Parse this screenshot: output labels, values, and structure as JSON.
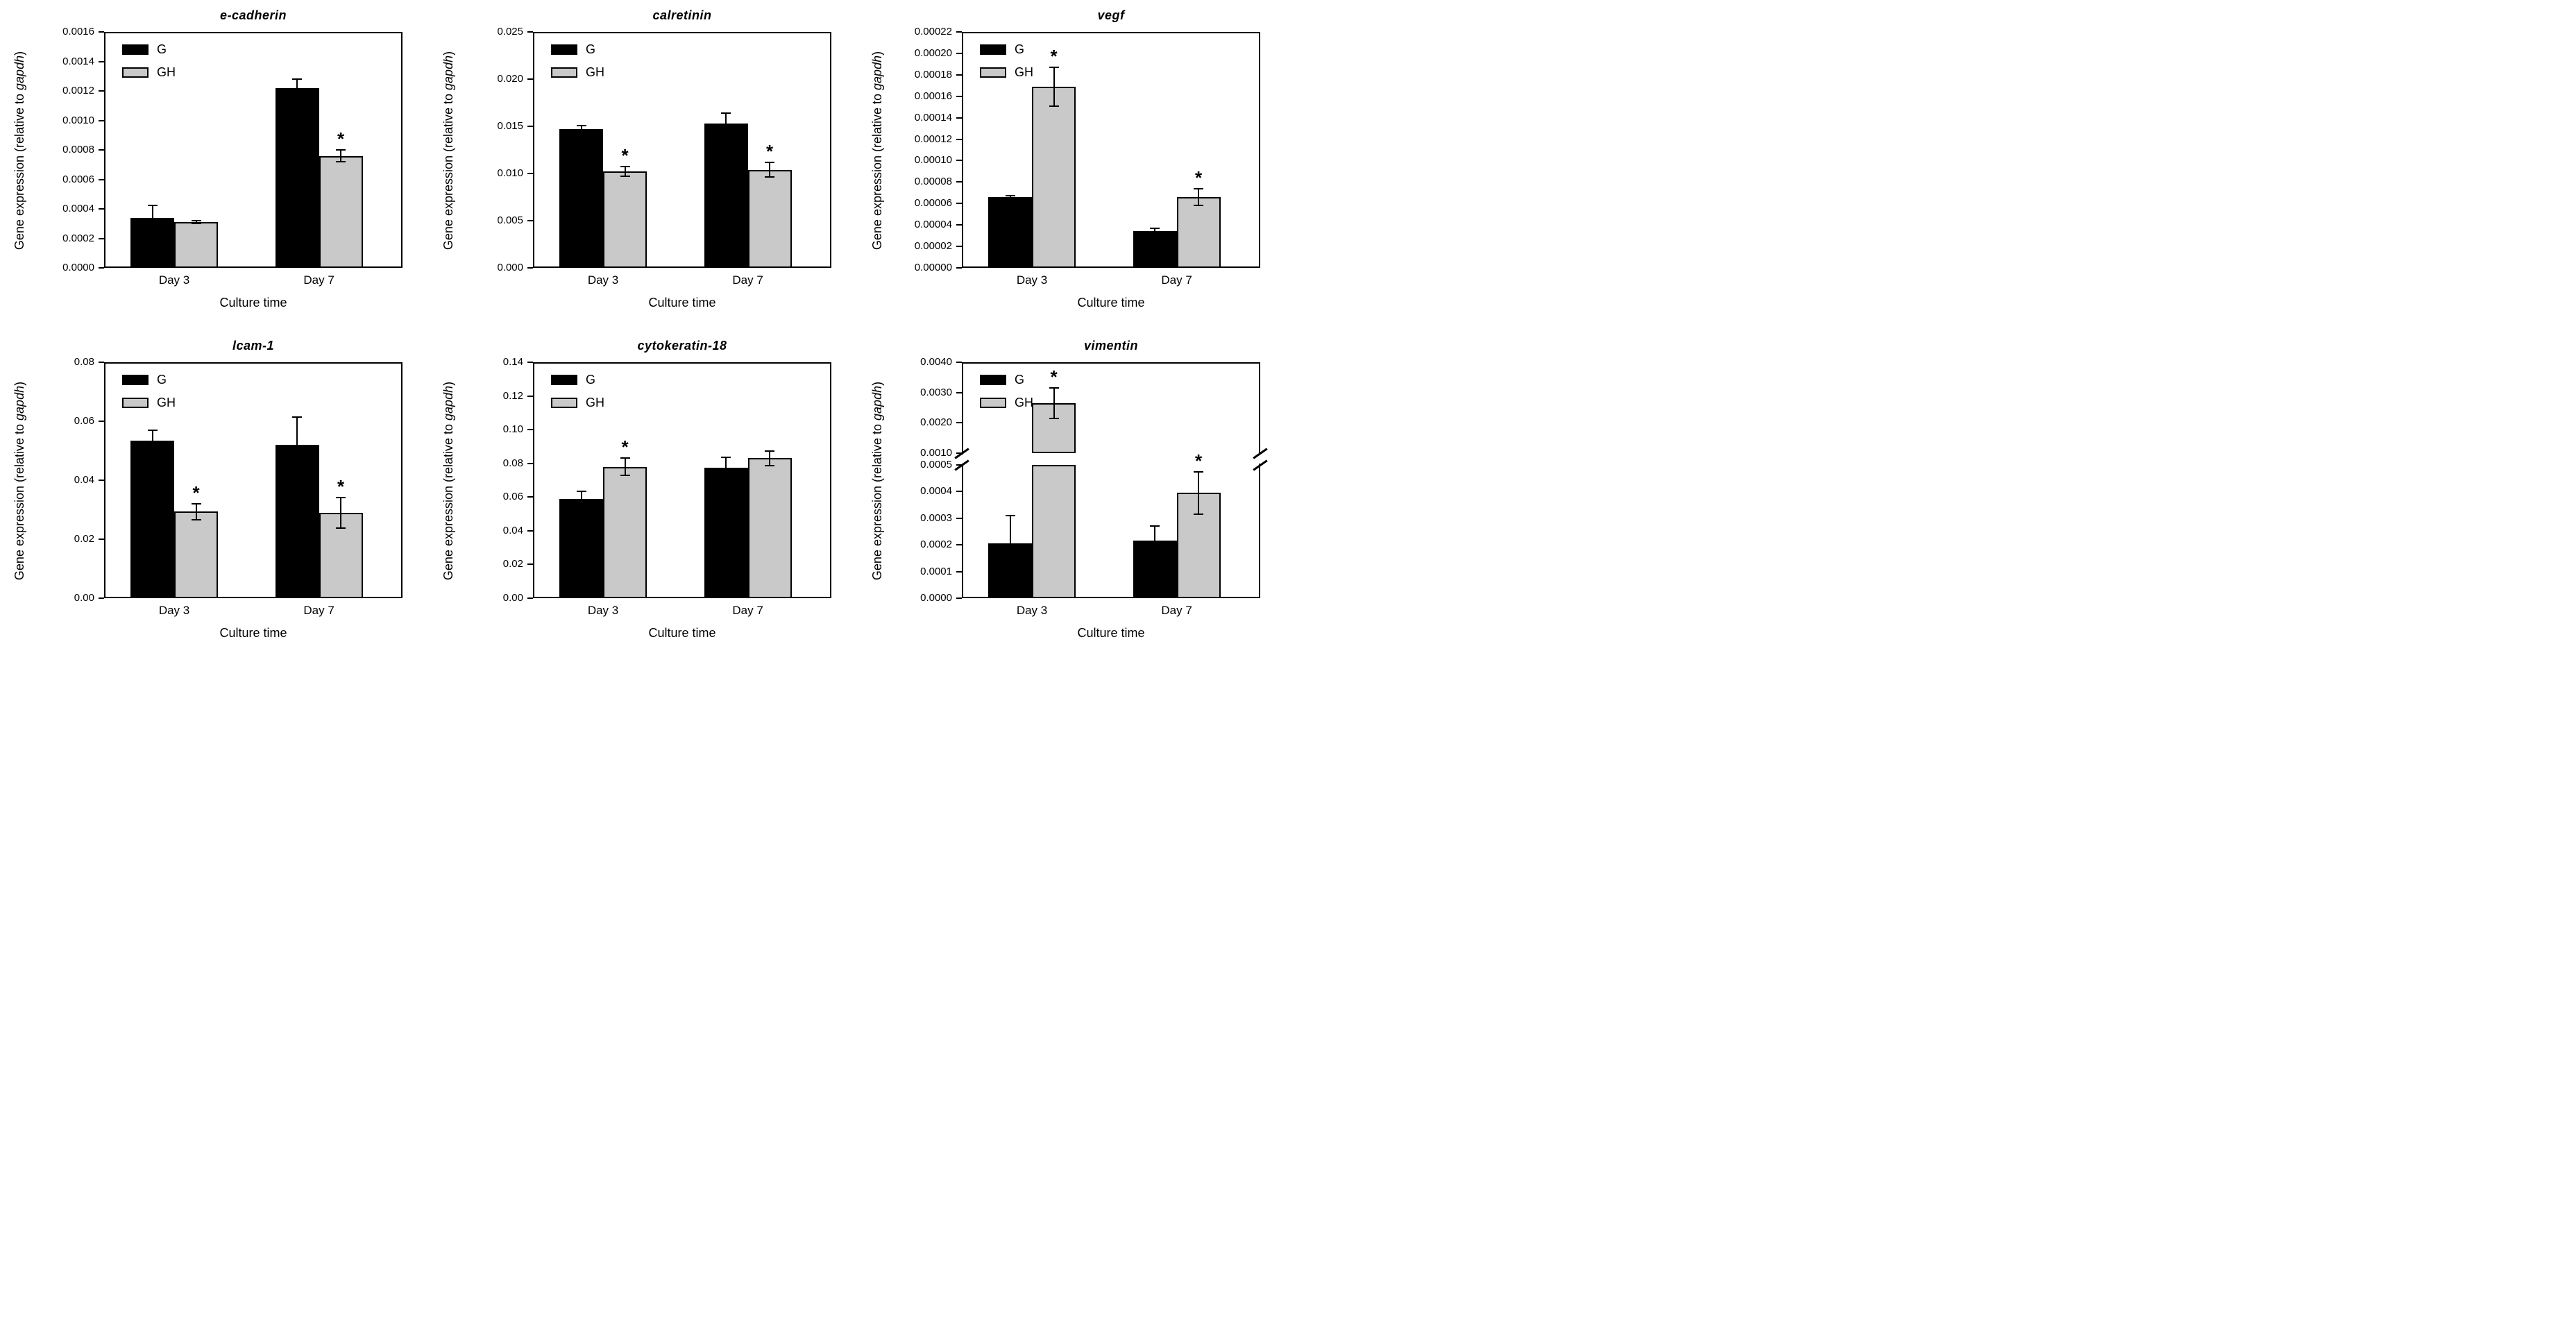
{
  "figure": {
    "sig_marker": "*",
    "colors": {
      "g_fill": "#000000",
      "gh_fill": "#c9c9c9",
      "axis": "#000000",
      "background": "#ffffff"
    }
  },
  "chart_data": [
    {
      "type": "bar",
      "title": "e-cadherin",
      "xlabel": "Culture time",
      "ylabel_prefix": "Gene expression (relative to ",
      "ylabel_italic": "gapdh",
      "ylabel_suffix": ")",
      "categories": [
        "Day 3",
        "Day 7"
      ],
      "ylim": [
        0,
        0.0016
      ],
      "grid": false,
      "legend_position": "top-left",
      "yticks": [
        {
          "v": 0.0,
          "label": "0.0000"
        },
        {
          "v": 0.0002,
          "label": "0.0002"
        },
        {
          "v": 0.0004,
          "label": "0.0004"
        },
        {
          "v": 0.0006,
          "label": "0.0006"
        },
        {
          "v": 0.0008,
          "label": "0.0008"
        },
        {
          "v": 0.001,
          "label": "0.0010"
        },
        {
          "v": 0.0012,
          "label": "0.0012"
        },
        {
          "v": 0.0014,
          "label": "0.0014"
        },
        {
          "v": 0.0016,
          "label": "0.0016"
        }
      ],
      "series": [
        {
          "name": "G",
          "fill": "#000000",
          "values": [
            0.00034,
            0.00122
          ],
          "errors": [
            8.5e-05,
            6e-05
          ],
          "sig": [
            false,
            false
          ]
        },
        {
          "name": "GH",
          "fill": "#c9c9c9",
          "values": [
            0.00031,
            0.00076
          ],
          "errors": [
            1e-05,
            4e-05
          ],
          "sig": [
            false,
            true
          ]
        }
      ]
    },
    {
      "type": "bar",
      "title": "calretinin",
      "xlabel": "Culture time",
      "ylabel_prefix": "Gene expression (relative to ",
      "ylabel_italic": "gapdh",
      "ylabel_suffix": ")",
      "categories": [
        "Day 3",
        "Day 7"
      ],
      "ylim": [
        0,
        0.025
      ],
      "grid": false,
      "legend_position": "top-left",
      "yticks": [
        {
          "v": 0.0,
          "label": "0.000"
        },
        {
          "v": 0.005,
          "label": "0.005"
        },
        {
          "v": 0.01,
          "label": "0.010"
        },
        {
          "v": 0.015,
          "label": "0.015"
        },
        {
          "v": 0.02,
          "label": "0.020"
        },
        {
          "v": 0.025,
          "label": "0.025"
        }
      ],
      "series": [
        {
          "name": "G",
          "fill": "#000000",
          "values": [
            0.0147,
            0.0153
          ],
          "errors": [
            0.0004,
            0.0011
          ],
          "sig": [
            false,
            false
          ]
        },
        {
          "name": "GH",
          "fill": "#c9c9c9",
          "values": [
            0.0102,
            0.0104
          ],
          "errors": [
            0.0005,
            0.0008
          ],
          "sig": [
            true,
            true
          ]
        }
      ]
    },
    {
      "type": "bar",
      "title": "vegf",
      "xlabel": "Culture time",
      "ylabel_prefix": "Gene expression (relative to ",
      "ylabel_italic": "gapdh",
      "ylabel_suffix": ")",
      "categories": [
        "Day 3",
        "Day 7"
      ],
      "ylim": [
        0,
        0.00022
      ],
      "grid": false,
      "legend_position": "top-left",
      "yticks": [
        {
          "v": 0.0,
          "label": "0.00000"
        },
        {
          "v": 2e-05,
          "label": "0.00002"
        },
        {
          "v": 4e-05,
          "label": "0.00004"
        },
        {
          "v": 6e-05,
          "label": "0.00006"
        },
        {
          "v": 8e-05,
          "label": "0.00008"
        },
        {
          "v": 0.0001,
          "label": "0.00010"
        },
        {
          "v": 0.00012,
          "label": "0.00012"
        },
        {
          "v": 0.00014,
          "label": "0.00014"
        },
        {
          "v": 0.00016,
          "label": "0.00016"
        },
        {
          "v": 0.00018,
          "label": "0.00018"
        },
        {
          "v": 0.0002,
          "label": "0.00020"
        },
        {
          "v": 0.00022,
          "label": "0.00022"
        }
      ],
      "series": [
        {
          "name": "G",
          "fill": "#000000",
          "values": [
            6.6e-05,
            3.4e-05
          ],
          "errors": [
            1e-06,
            3e-06
          ],
          "sig": [
            false,
            false
          ]
        },
        {
          "name": "GH",
          "fill": "#c9c9c9",
          "values": [
            0.000169,
            6.6e-05
          ],
          "errors": [
            1.8e-05,
            8e-06
          ],
          "sig": [
            true,
            true
          ]
        }
      ]
    },
    {
      "type": "bar",
      "title": "lcam-1",
      "xlabel": "Culture time",
      "ylabel_prefix": "Gene expression (relative to ",
      "ylabel_italic": "gapdh",
      "ylabel_suffix": ")",
      "categories": [
        "Day 3",
        "Day 7"
      ],
      "ylim": [
        0,
        0.08
      ],
      "grid": false,
      "legend_position": "top-left",
      "yticks": [
        {
          "v": 0.0,
          "label": "0.00"
        },
        {
          "v": 0.02,
          "label": "0.02"
        },
        {
          "v": 0.04,
          "label": "0.04"
        },
        {
          "v": 0.06,
          "label": "0.06"
        },
        {
          "v": 0.08,
          "label": "0.08"
        }
      ],
      "series": [
        {
          "name": "G",
          "fill": "#000000",
          "values": [
            0.0535,
            0.052
          ],
          "errors": [
            0.0035,
            0.0095
          ],
          "sig": [
            false,
            false
          ]
        },
        {
          "name": "GH",
          "fill": "#c9c9c9",
          "values": [
            0.0293,
            0.029
          ],
          "errors": [
            0.0027,
            0.0052
          ],
          "sig": [
            true,
            true
          ]
        }
      ]
    },
    {
      "type": "bar",
      "title": "cytokeratin-18",
      "xlabel": "Culture time",
      "ylabel_prefix": "Gene expression (relative to ",
      "ylabel_italic": "gapdh",
      "ylabel_suffix": ")",
      "categories": [
        "Day 3",
        "Day 7"
      ],
      "ylim": [
        0,
        0.14
      ],
      "grid": false,
      "legend_position": "top-left",
      "yticks": [
        {
          "v": 0.0,
          "label": "0.00"
        },
        {
          "v": 0.02,
          "label": "0.02"
        },
        {
          "v": 0.04,
          "label": "0.04"
        },
        {
          "v": 0.06,
          "label": "0.06"
        },
        {
          "v": 0.08,
          "label": "0.08"
        },
        {
          "v": 0.1,
          "label": "0.10"
        },
        {
          "v": 0.12,
          "label": "0.12"
        },
        {
          "v": 0.14,
          "label": "0.14"
        }
      ],
      "series": [
        {
          "name": "G",
          "fill": "#000000",
          "values": [
            0.059,
            0.0775
          ],
          "errors": [
            0.0045,
            0.006
          ],
          "sig": [
            false,
            false
          ]
        },
        {
          "name": "GH",
          "fill": "#c9c9c9",
          "values": [
            0.078,
            0.083
          ],
          "errors": [
            0.005,
            0.0045
          ],
          "sig": [
            true,
            false
          ]
        }
      ]
    },
    {
      "type": "bar",
      "title": "vimentin",
      "xlabel": "Culture time",
      "ylabel_prefix": "Gene expression (relative to ",
      "ylabel_italic": "gapdh",
      "ylabel_suffix": ")",
      "categories": [
        "Day 3",
        "Day 7"
      ],
      "ylim": [
        0,
        0.004
      ],
      "grid": false,
      "legend_position": "top-left",
      "axis_break": {
        "low_max": 0.0005,
        "high_min": 0.001,
        "high_max": 0.004
      },
      "yticks": [
        {
          "v": 0.0,
          "label": "0.0000"
        },
        {
          "v": 0.0001,
          "label": "0.0001"
        },
        {
          "v": 0.0002,
          "label": "0.0002"
        },
        {
          "v": 0.0003,
          "label": "0.0003"
        },
        {
          "v": 0.0004,
          "label": "0.0004"
        },
        {
          "v": 0.0005,
          "label": "0.0005"
        },
        {
          "v": 0.001,
          "label": "0.0010"
        },
        {
          "v": 0.002,
          "label": "0.0020"
        },
        {
          "v": 0.003,
          "label": "0.0030"
        },
        {
          "v": 0.004,
          "label": "0.0040"
        }
      ],
      "series": [
        {
          "name": "G",
          "fill": "#000000",
          "values": [
            0.000205,
            0.000215
          ],
          "errors": [
            0.000105,
            5.5e-05
          ],
          "sig": [
            false,
            false
          ]
        },
        {
          "name": "GH",
          "fill": "#c9c9c9",
          "values": [
            0.00265,
            0.000395
          ],
          "errors": [
            0.0005,
            8e-05
          ],
          "sig": [
            true,
            true
          ]
        }
      ]
    }
  ]
}
